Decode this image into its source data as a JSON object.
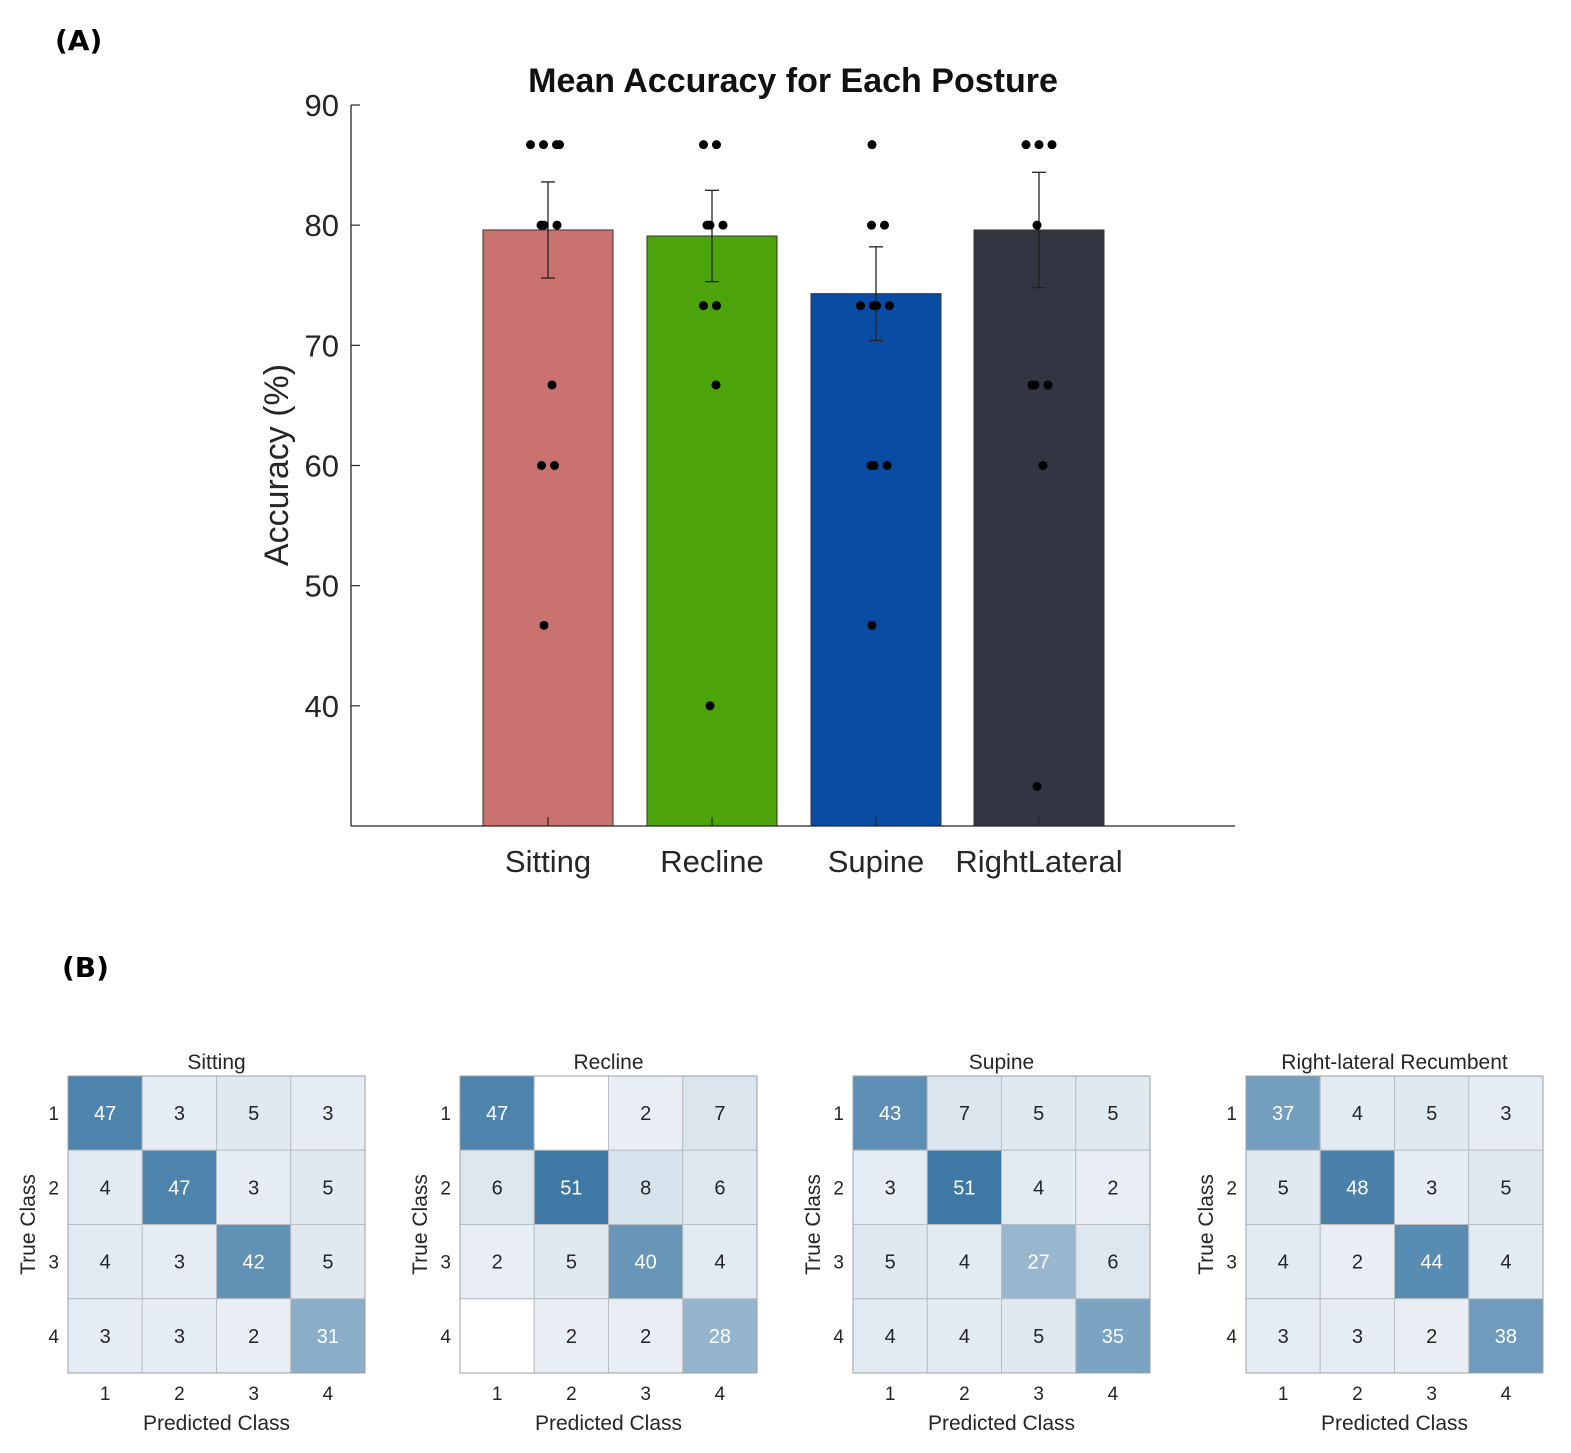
{
  "panels": {
    "a": "(A)",
    "b": "(B)"
  },
  "chart_data": [
    {
      "type": "bar",
      "title": "Mean Accuracy for Each Posture",
      "xlabel": "",
      "ylabel": "Accuracy (%)",
      "ylim": [
        30,
        90
      ],
      "yticks": [
        40,
        50,
        60,
        70,
        80,
        90
      ],
      "categories": [
        "Sitting",
        "Recline",
        "Supine",
        "RightLateral"
      ],
      "values": [
        79.6,
        79.1,
        74.3,
        79.6
      ],
      "error": [
        4.0,
        3.8,
        3.9,
        4.8
      ],
      "colors": [
        "#c97270",
        "#4da30a",
        "#084da3",
        "#343542"
      ],
      "points": [
        [
          86.7,
          86.7,
          86.7,
          86.7,
          80,
          80,
          80,
          66.7,
          60,
          60,
          46.7
        ],
        [
          86.7,
          86.7,
          80,
          80,
          80,
          73.3,
          73.3,
          66.7,
          40
        ],
        [
          86.7,
          80,
          80,
          73.3,
          73.3,
          73.3,
          73.3,
          60,
          60,
          60,
          46.7
        ],
        [
          86.7,
          86.7,
          86.7,
          80,
          66.7,
          66.7,
          66.7,
          60,
          33.3
        ]
      ]
    },
    {
      "type": "heatmap",
      "xlabel": "Predicted Class",
      "ylabel": "True Class",
      "class_labels": [
        "1",
        "2",
        "3",
        "4"
      ],
      "matrices": [
        {
          "title": "Sitting",
          "values": [
            [
              47,
              3,
              5,
              3
            ],
            [
              4,
              47,
              3,
              5
            ],
            [
              4,
              3,
              42,
              5
            ],
            [
              3,
              3,
              2,
              31
            ]
          ]
        },
        {
          "title": "Recline",
          "values": [
            [
              47,
              null,
              2,
              7
            ],
            [
              6,
              51,
              8,
              6
            ],
            [
              2,
              5,
              40,
              4
            ],
            [
              null,
              2,
              2,
              28
            ]
          ]
        },
        {
          "title": "Supine",
          "values": [
            [
              43,
              7,
              5,
              5
            ],
            [
              3,
              51,
              4,
              2
            ],
            [
              5,
              4,
              27,
              6
            ],
            [
              4,
              4,
              5,
              35
            ]
          ]
        },
        {
          "title": "Right-lateral Recumbent",
          "values": [
            [
              37,
              4,
              5,
              3
            ],
            [
              5,
              48,
              3,
              5
            ],
            [
              4,
              2,
              44,
              4
            ],
            [
              3,
              3,
              2,
              38
            ]
          ]
        }
      ]
    }
  ]
}
